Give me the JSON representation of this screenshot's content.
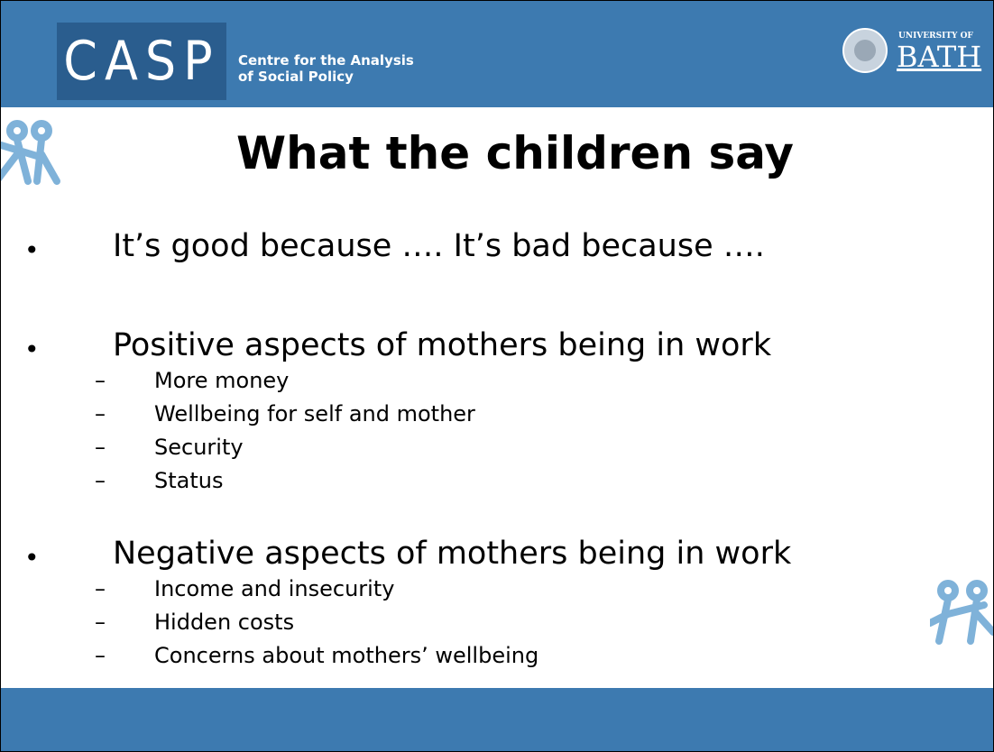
{
  "header": {
    "logo": "CASP",
    "org_line1": "Centre for the Analysis",
    "org_line2": "of Social Policy",
    "uni_small": "UNIVERSITY OF",
    "uni_big": "BATH"
  },
  "title": "What the children say",
  "bullets": [
    {
      "text": "It’s good because …. It’s bad because ….",
      "subs": []
    },
    {
      "text": "Positive aspects of mothers being in work",
      "subs": [
        "More money",
        "Wellbeing for self and mother",
        "Security",
        "Status"
      ]
    },
    {
      "text": "Negative aspects of mothers being in work",
      "subs": [
        "Income and insecurity",
        "Hidden costs",
        "Concerns about mothers’ wellbeing"
      ]
    }
  ]
}
